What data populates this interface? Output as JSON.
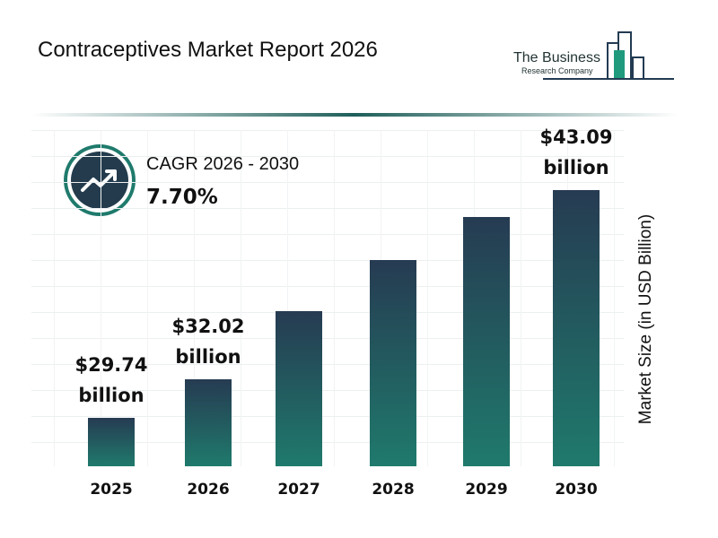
{
  "chart_data": {
    "type": "bar",
    "title": "Contraceptives Market Report 2026",
    "logo": {
      "line1": "The Business",
      "line2": "Research Company"
    },
    "cagr_label": "CAGR 2026 - 2030",
    "cagr_value": "7.70%",
    "y_label": "Market Size (in USD Billion)",
    "categories": [
      "2025",
      "2026",
      "2027",
      "2028",
      "2029",
      "2030"
    ],
    "values": [
      29.74,
      32.02,
      36,
      39,
      41.5,
      43.09
    ],
    "value_labels": [
      "$29.74 billion",
      "$32.02 billion",
      null,
      null,
      null,
      "$43.09 billion"
    ],
    "color": "#1f7a6c",
    "grid": true
  }
}
